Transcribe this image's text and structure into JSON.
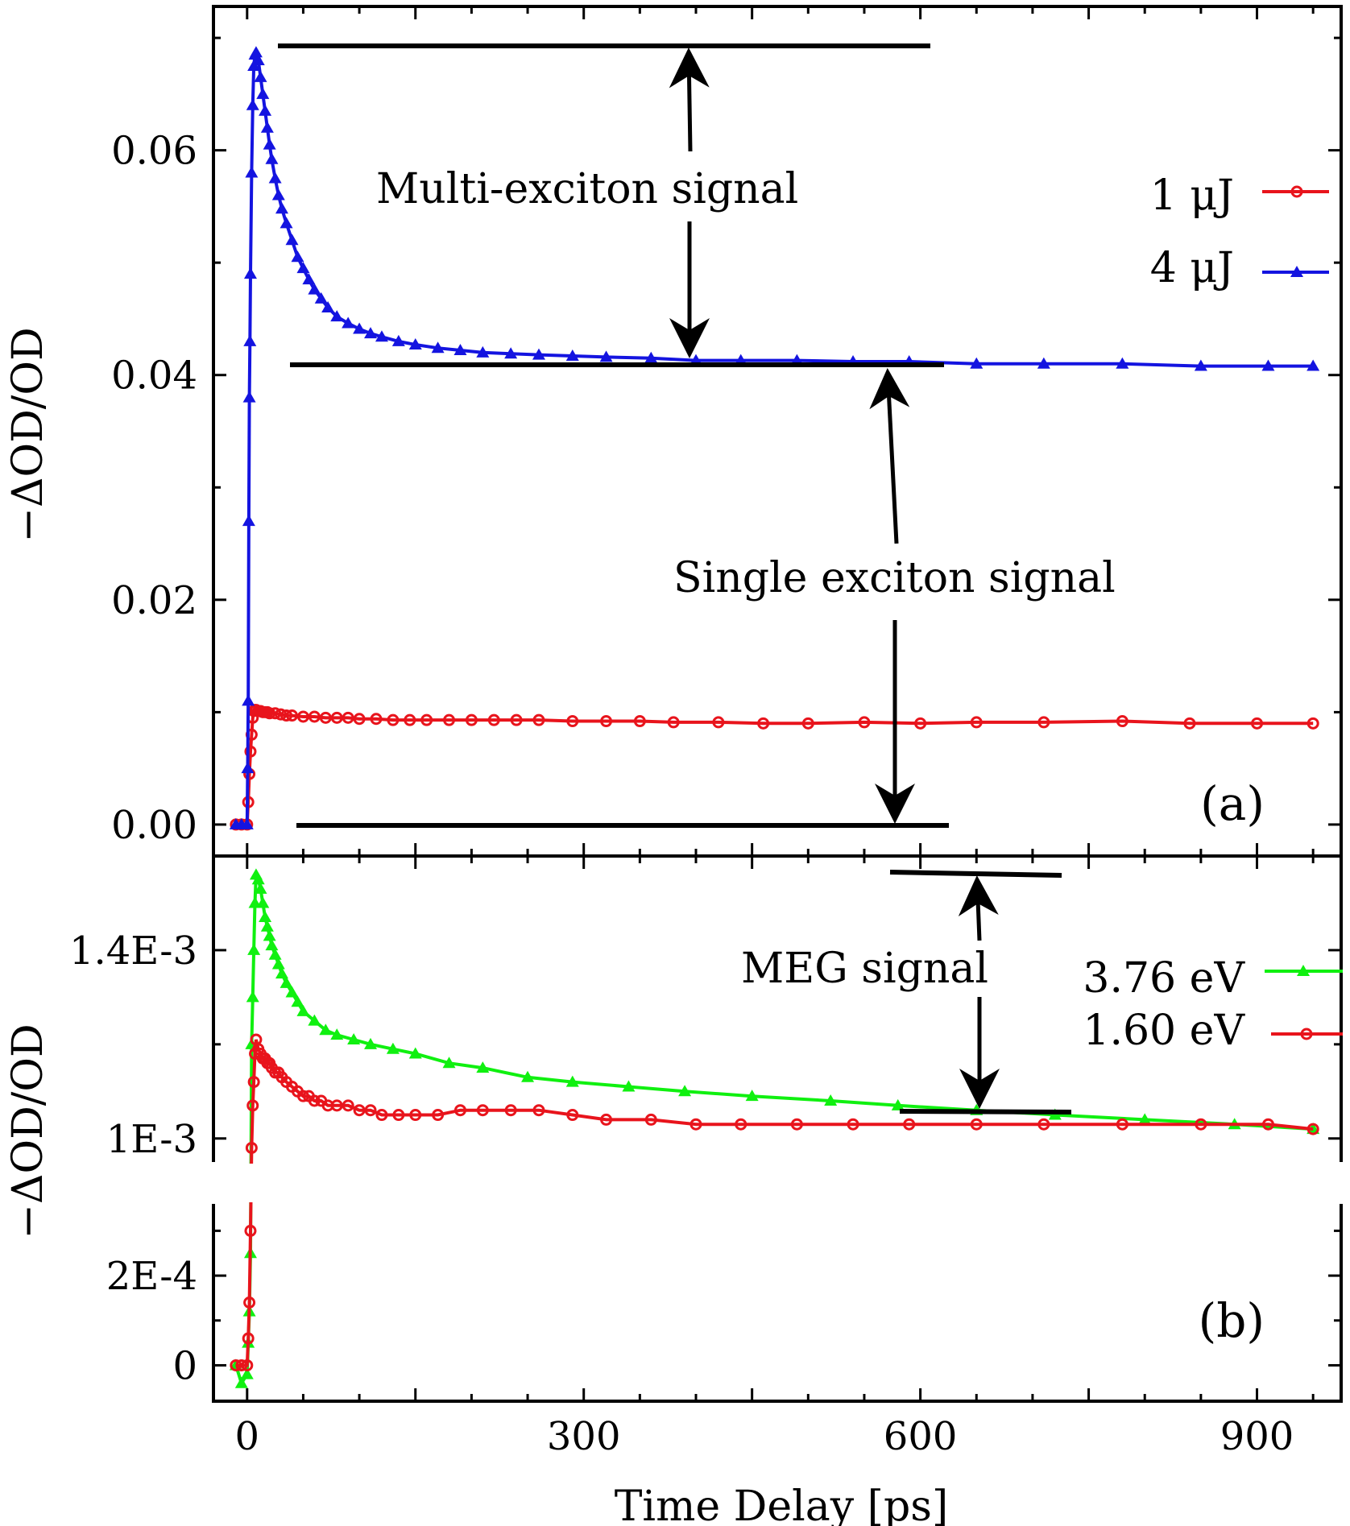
{
  "chart_data": [
    {
      "id": "a",
      "type": "line",
      "panel_label": "(a)",
      "ylabel": "−ΔOD/OD",
      "xlim": [
        -30,
        975
      ],
      "ylim": [
        -0.0028,
        0.0728
      ],
      "yticks": [
        0.0,
        0.02,
        0.04,
        0.06
      ],
      "ytick_labels": [
        "0.00",
        "0.02",
        "0.04",
        "0.06"
      ],
      "legend_position": "top-right",
      "series": [
        {
          "name": "1 μJ",
          "color": "#e8141c",
          "marker": "circle",
          "x": [
            -10,
            -5,
            0,
            1,
            2,
            3,
            4,
            5,
            6,
            7,
            8,
            10,
            12,
            14,
            16,
            18,
            20,
            25,
            30,
            35,
            40,
            50,
            60,
            70,
            80,
            90,
            100,
            115,
            130,
            145,
            160,
            180,
            200,
            220,
            240,
            260,
            290,
            320,
            350,
            380,
            420,
            460,
            500,
            550,
            600,
            650,
            710,
            780,
            840,
            900,
            950
          ],
          "y": [
            0.0,
            0.0,
            0.0,
            0.002,
            0.0045,
            0.0065,
            0.008,
            0.0095,
            0.0101,
            0.0102,
            0.0102,
            0.0101,
            0.0101,
            0.01,
            0.01,
            0.01,
            0.0099,
            0.0099,
            0.0098,
            0.0097,
            0.0097,
            0.0096,
            0.0096,
            0.0095,
            0.0095,
            0.0095,
            0.0094,
            0.0094,
            0.0093,
            0.0093,
            0.0093,
            0.0093,
            0.0093,
            0.0093,
            0.0093,
            0.0093,
            0.0092,
            0.0092,
            0.0092,
            0.0091,
            0.0091,
            0.009,
            0.009,
            0.0091,
            0.009,
            0.0091,
            0.0091,
            0.0092,
            0.009,
            0.009,
            0.009
          ]
        },
        {
          "name": "4 μJ",
          "color": "#1414e0",
          "marker": "triangle",
          "x": [
            -10,
            -5,
            0,
            0.5,
            1,
            1.5,
            2,
            2.5,
            3,
            4,
            5,
            6,
            7,
            8,
            10,
            12,
            14,
            16,
            18,
            20,
            22,
            25,
            28,
            31,
            35,
            40,
            45,
            50,
            55,
            60,
            66,
            72,
            80,
            90,
            100,
            110,
            120,
            135,
            150,
            170,
            190,
            210,
            235,
            260,
            290,
            320,
            360,
            400,
            440,
            490,
            540,
            590,
            650,
            710,
            780,
            850,
            910,
            950
          ],
          "y": [
            0.0,
            0.0,
            0.0,
            0.005,
            0.011,
            0.027,
            0.038,
            0.043,
            0.049,
            0.058,
            0.064,
            0.0675,
            0.0685,
            0.0687,
            0.068,
            0.0665,
            0.065,
            0.0635,
            0.062,
            0.0605,
            0.0592,
            0.0575,
            0.056,
            0.0548,
            0.0535,
            0.052,
            0.0505,
            0.0495,
            0.0485,
            0.0476,
            0.0468,
            0.046,
            0.0452,
            0.0446,
            0.0441,
            0.0437,
            0.0434,
            0.043,
            0.0427,
            0.0424,
            0.0422,
            0.042,
            0.0419,
            0.0418,
            0.0417,
            0.0416,
            0.0415,
            0.0413,
            0.0413,
            0.0413,
            0.0412,
            0.0412,
            0.041,
            0.041,
            0.041,
            0.0408,
            0.0408,
            0.0408
          ]
        }
      ],
      "annotations": [
        {
          "text": "Multi-exciton signal"
        },
        {
          "text": "Single exciton signal"
        }
      ]
    },
    {
      "id": "b",
      "type": "line",
      "panel_label": "(b)",
      "ylabel": "−ΔOD/OD",
      "xlabel": "Time Delay [ps]",
      "xlim": [
        -30,
        975
      ],
      "xticks": [
        0,
        300,
        600,
        900
      ],
      "xtick_labels": [
        "0",
        "300",
        "600",
        "900"
      ],
      "broken_y_axis": true,
      "ylim_lower": [
        -8e-05,
        0.00036
      ],
      "ylim_upper": [
        0.00095,
        0.0016
      ],
      "yticks": [
        0,
        0.0002,
        0.001,
        0.0014
      ],
      "ytick_labels": [
        "0",
        "2E-4",
        "1E-3",
        "1.4E-3"
      ],
      "legend_position": "top-right",
      "series": [
        {
          "name": "3.76 eV",
          "color": "#10f010",
          "marker": "triangle",
          "x": [
            -10,
            -5,
            0,
            1,
            2,
            3,
            4,
            5,
            6,
            7,
            8,
            10,
            12,
            14,
            16,
            18,
            20,
            22,
            25,
            28,
            31,
            35,
            40,
            45,
            50,
            60,
            70,
            80,
            95,
            110,
            130,
            150,
            180,
            210,
            250,
            290,
            340,
            390,
            450,
            520,
            580,
            650,
            720,
            800,
            880,
            950
          ],
          "y": [
            0.0,
            -4e-05,
            -2e-05,
            5e-05,
            0.00012,
            0.00025,
            0.0012,
            0.0013,
            0.0014,
            0.0015,
            0.00156,
            0.00155,
            0.00153,
            0.0015,
            0.00147,
            0.00145,
            0.00143,
            0.00141,
            0.00139,
            0.00137,
            0.00135,
            0.00133,
            0.00131,
            0.00129,
            0.00127,
            0.00125,
            0.00123,
            0.00122,
            0.00121,
            0.0012,
            0.00119,
            0.00118,
            0.00116,
            0.00115,
            0.00113,
            0.00112,
            0.00111,
            0.0011,
            0.00109,
            0.00108,
            0.00107,
            0.00106,
            0.00105,
            0.00104,
            0.00103,
            0.00102
          ]
        },
        {
          "name": "1.60 eV",
          "color": "#e8141c",
          "marker": "circle",
          "x": [
            -10,
            -5,
            0,
            1,
            2,
            3,
            4,
            5,
            6,
            7,
            8,
            10,
            12,
            14,
            16,
            18,
            20,
            22,
            25,
            28,
            31,
            35,
            40,
            45,
            50,
            55,
            60,
            66,
            72,
            80,
            90,
            100,
            110,
            120,
            135,
            150,
            170,
            190,
            210,
            235,
            260,
            290,
            320,
            360,
            400,
            440,
            490,
            540,
            590,
            650,
            710,
            780,
            850,
            910,
            950
          ],
          "y": [
            0.0,
            0.0,
            0.0,
            6e-05,
            0.00014,
            0.0003,
            0.00098,
            0.00107,
            0.00112,
            0.00118,
            0.00121,
            0.00119,
            0.00118,
            0.00117,
            0.00117,
            0.00116,
            0.00116,
            0.00115,
            0.00114,
            0.00114,
            0.00113,
            0.00112,
            0.00111,
            0.0011,
            0.00109,
            0.00109,
            0.00108,
            0.00108,
            0.00107,
            0.00107,
            0.00107,
            0.00106,
            0.00106,
            0.00105,
            0.00105,
            0.00105,
            0.00105,
            0.00106,
            0.00106,
            0.00106,
            0.00106,
            0.00105,
            0.00104,
            0.00104,
            0.00103,
            0.00103,
            0.00103,
            0.00103,
            0.00103,
            0.00103,
            0.00103,
            0.00103,
            0.00103,
            0.00103,
            0.00102
          ]
        }
      ],
      "annotations": [
        {
          "text": "MEG signal"
        }
      ]
    }
  ]
}
